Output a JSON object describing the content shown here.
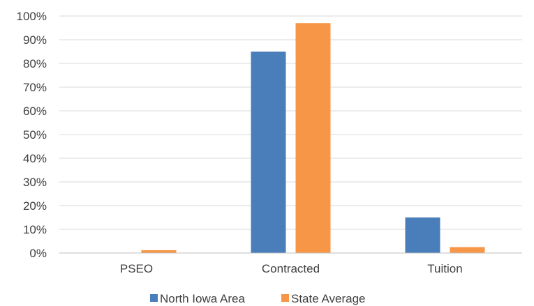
{
  "chart_data": {
    "type": "bar",
    "categories": [
      "PSEO",
      "Contracted",
      "Tuition"
    ],
    "series": [
      {
        "name": "North Iowa Area",
        "color": "#4a7ebb",
        "values": [
          0,
          85,
          15
        ]
      },
      {
        "name": "State Average",
        "color": "#f79646",
        "values": [
          1.2,
          97,
          2.5
        ]
      }
    ],
    "yticks": [
      "0%",
      "10%",
      "20%",
      "30%",
      "40%",
      "50%",
      "60%",
      "70%",
      "80%",
      "90%",
      "100%"
    ],
    "ylim": [
      0,
      100
    ],
    "grid": true,
    "legend_position": "bottom"
  }
}
